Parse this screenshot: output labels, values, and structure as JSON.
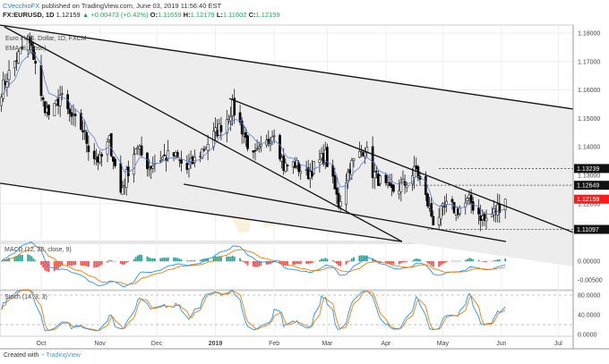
{
  "header": {
    "author": "CVecchioFX",
    "published": "published on TradingView.com, June 03, 2019 11:56:40 EST",
    "symbol": "FX:EURUSD, 1D",
    "last": "1.12159",
    "change": "+0.00473 (+0.42%)",
    "o_label": "O:",
    "o": "1.11659",
    "h_label": "H:",
    "h": "1.12179",
    "l_label": "L:",
    "l": "1.11602",
    "c_label": "C:",
    "c": "1.12159"
  },
  "legend": {
    "series": "Euro / U.S. Dollar, 1D, FXCM",
    "ema": "EMA (8, close)"
  },
  "watermark": "WikiFX",
  "footer": {
    "created": "Created with",
    "brand": "TradingView"
  },
  "colors": {
    "up": "#ffffff",
    "down": "#000000",
    "ema": "#5b7fd6",
    "macd": "#2196f3",
    "signal": "#f57c00",
    "hist_up": "#26a69a",
    "hist_down": "#ef5350",
    "last_tag": "#ff1a1a"
  },
  "chart_data": {
    "type": "candlestick",
    "symbol": "EURUSD",
    "x_unit": "calendar days from 2018-10-01",
    "price_ticks": [
      "1.18000",
      "1.17000",
      "1.16000",
      "1.15000",
      "1.14000",
      "1.13000",
      "1.12000"
    ],
    "price_ticks_values": [
      1.18,
      1.17,
      1.16,
      1.15,
      1.14,
      1.13,
      1.12
    ],
    "ylim": [
      1.1035,
      1.1855
    ],
    "time_ticks": [
      {
        "label": "Oct",
        "day": 0
      },
      {
        "label": "Nov",
        "day": 31
      },
      {
        "label": "Dec",
        "day": 61
      },
      {
        "label": "2019",
        "day": 92
      },
      {
        "label": "Feb",
        "day": 123
      },
      {
        "label": "Mar",
        "day": 151
      },
      {
        "label": "Apr",
        "day": 182
      },
      {
        "label": "May",
        "day": 212
      },
      {
        "label": "Jun",
        "day": 243
      },
      {
        "label": "Jul",
        "day": 273
      }
    ],
    "close_keypoints": [
      [
        -21,
        1.16
      ],
      [
        -14,
        1.17
      ],
      [
        -7,
        1.178
      ],
      [
        -3,
        1.17
      ],
      [
        0,
        1.157
      ],
      [
        5,
        1.15
      ],
      [
        10,
        1.158
      ],
      [
        15,
        1.151
      ],
      [
        22,
        1.146
      ],
      [
        26,
        1.138
      ],
      [
        31,
        1.135
      ],
      [
        36,
        1.142
      ],
      [
        42,
        1.124
      ],
      [
        45,
        1.13
      ],
      [
        50,
        1.14
      ],
      [
        57,
        1.133
      ],
      [
        63,
        1.136
      ],
      [
        70,
        1.137
      ],
      [
        77,
        1.132
      ],
      [
        84,
        1.138
      ],
      [
        91,
        1.144
      ],
      [
        98,
        1.15
      ],
      [
        101,
        1.154
      ],
      [
        105,
        1.148
      ],
      [
        112,
        1.136
      ],
      [
        119,
        1.141
      ],
      [
        123,
        1.146
      ],
      [
        128,
        1.133
      ],
      [
        134,
        1.134
      ],
      [
        140,
        1.13
      ],
      [
        150,
        1.137
      ],
      [
        157,
        1.12
      ],
      [
        163,
        1.133
      ],
      [
        171,
        1.14
      ],
      [
        175,
        1.131
      ],
      [
        184,
        1.124
      ],
      [
        192,
        1.127
      ],
      [
        198,
        1.132
      ],
      [
        207,
        1.114
      ],
      [
        214,
        1.119
      ],
      [
        220,
        1.118
      ],
      [
        226,
        1.121
      ],
      [
        234,
        1.114
      ],
      [
        239,
        1.117
      ],
      [
        245,
        1.12159
      ]
    ],
    "ema_period": 8,
    "trendlines": [
      {
        "name": "channel-upper",
        "from": [
          -21.7,
          1.1828
        ],
        "to": [
          280.9,
          1.1533
        ]
      },
      {
        "name": "channel-lower",
        "from": [
          -21.7,
          1.1272
        ],
        "to": [
          190.5,
          1.1067
        ]
      },
      {
        "name": "steep-resistance",
        "from": [
          -19.4,
          1.1822
        ],
        "to": [
          190.5,
          1.1067
        ]
      },
      {
        "name": "wedge-support",
        "from": [
          75.2,
          1.1269
        ],
        "to": [
          245.4,
          1.1067
        ]
      },
      {
        "name": "wedge-resistance",
        "from": [
          99.3,
          1.157
        ],
        "to": [
          280.9,
          1.1099
        ]
      }
    ],
    "levels": [
      {
        "label": "1.13239",
        "value": 1.13239,
        "from_day": 210
      },
      {
        "label": "1.12649",
        "value": 1.12649,
        "from_day": 194
      },
      {
        "label": "1.11097",
        "value": 1.11097,
        "from_day": 204
      }
    ],
    "last_price": {
      "label": "1.12159",
      "value": 1.12159
    },
    "macd": {
      "title": "MACD (12, 26, close, 9)",
      "ticks": [
        "0.00000",
        "-0.00500"
      ],
      "tick_values": [
        0,
        -0.005
      ],
      "ylim": [
        -0.0075,
        0.006
      ]
    },
    "stoch": {
      "title": "Stoch (14, 3, 3)",
      "ticks": [
        "80.0000",
        "40.0000",
        "0.0000"
      ],
      "tick_values": [
        80,
        40,
        0
      ],
      "bands": [
        80,
        20
      ],
      "ylim": [
        0,
        88
      ]
    }
  }
}
